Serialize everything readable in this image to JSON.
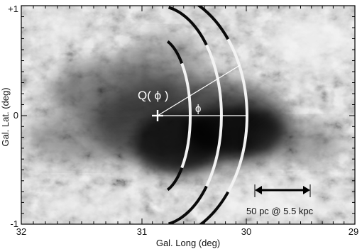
{
  "figure": {
    "xlabel": "Gal. Long (deg)",
    "ylabel": "Gal. Lat. (deg)",
    "x_ticks": [
      "32",
      "31",
      "30",
      "29"
    ],
    "y_ticks": [
      "+1",
      "0",
      "-1"
    ],
    "x_range": [
      32,
      29
    ],
    "y_range": [
      -1,
      1
    ],
    "annotations": {
      "q_label": "Q( ϕ )",
      "phi_label": "ϕ",
      "scale_label": "50 pc @ 5.5 kpc"
    },
    "colors": {
      "arc_black": "#0a0a0a",
      "arc_white": "#f2f2f2",
      "frame": "#000000"
    }
  }
}
